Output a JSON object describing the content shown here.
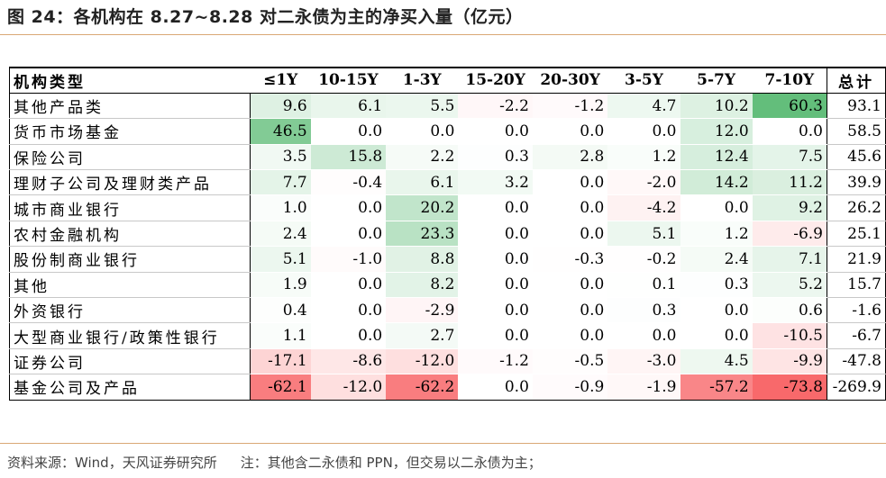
{
  "title": "图 24：各机构在 8.27~8.28 对二永债为主的净买入量（亿元）",
  "footer": {
    "source": "资料来源：Wind，天风证券研究所",
    "note": "注：其他含二永债和 PPN，但交易以二永债为主；"
  },
  "table": {
    "name_header": "机构类型",
    "total_header": "总计",
    "columns": [
      "≤1Y",
      "10-15Y",
      "1-3Y",
      "15-20Y",
      "20-30Y",
      "3-5Y",
      "5-7Y",
      "7-10Y"
    ],
    "rows": [
      {
        "name": "其他产品类",
        "values": [
          "9.6",
          "6.1",
          "5.5",
          "-2.2",
          "-1.2",
          "4.7",
          "10.2",
          "60.3"
        ],
        "total": "93.1"
      },
      {
        "name": "货币市场基金",
        "values": [
          "46.5",
          "0.0",
          "0.0",
          "0.0",
          "0.0",
          "0.0",
          "12.0",
          "0.0"
        ],
        "total": "58.5"
      },
      {
        "name": "保险公司",
        "values": [
          "3.5",
          "15.8",
          "2.2",
          "0.3",
          "2.8",
          "1.2",
          "12.4",
          "7.5"
        ],
        "total": "45.6"
      },
      {
        "name": "理财子公司及理财类产品",
        "values": [
          "7.7",
          "-0.4",
          "6.1",
          "3.2",
          "0.0",
          "-2.0",
          "14.2",
          "11.2"
        ],
        "total": "39.9"
      },
      {
        "name": "城市商业银行",
        "values": [
          "1.0",
          "0.0",
          "20.2",
          "0.0",
          "0.0",
          "-4.2",
          "0.0",
          "9.2"
        ],
        "total": "26.2"
      },
      {
        "name": "农村金融机构",
        "values": [
          "2.4",
          "0.0",
          "23.3",
          "0.0",
          "0.0",
          "5.1",
          "1.2",
          "-6.9"
        ],
        "total": "25.1"
      },
      {
        "name": "股份制商业银行",
        "values": [
          "5.1",
          "-1.0",
          "8.8",
          "0.0",
          "-0.3",
          "-0.2",
          "2.4",
          "7.1"
        ],
        "total": "21.9"
      },
      {
        "name": "其他",
        "values": [
          "1.9",
          "0.0",
          "8.2",
          "0.0",
          "0.0",
          "0.1",
          "0.3",
          "5.2"
        ],
        "total": "15.7"
      },
      {
        "name": "外资银行",
        "values": [
          "0.4",
          "0.0",
          "-2.9",
          "0.0",
          "0.0",
          "0.3",
          "0.0",
          "0.6"
        ],
        "total": "-1.6"
      },
      {
        "name": "大型商业银行/政策性银行",
        "values": [
          "1.1",
          "0.0",
          "2.7",
          "0.0",
          "0.0",
          "0.0",
          "0.0",
          "-10.5"
        ],
        "total": "-6.7"
      },
      {
        "name": "证券公司",
        "values": [
          "-17.1",
          "-8.6",
          "-12.0",
          "-1.2",
          "-0.5",
          "-3.0",
          "4.5",
          "-9.9"
        ],
        "total": "-47.8"
      },
      {
        "name": "基金公司及产品",
        "values": [
          "-62.1",
          "-12.0",
          "-62.2",
          "0.0",
          "-0.9",
          "-1.9",
          "-57.2",
          "-73.8"
        ],
        "total": "-269.9"
      }
    ]
  },
  "heatmap_colors": {
    "positive": "#63be7b",
    "negative": "#f8696b",
    "neutral": "#ffffff"
  }
}
